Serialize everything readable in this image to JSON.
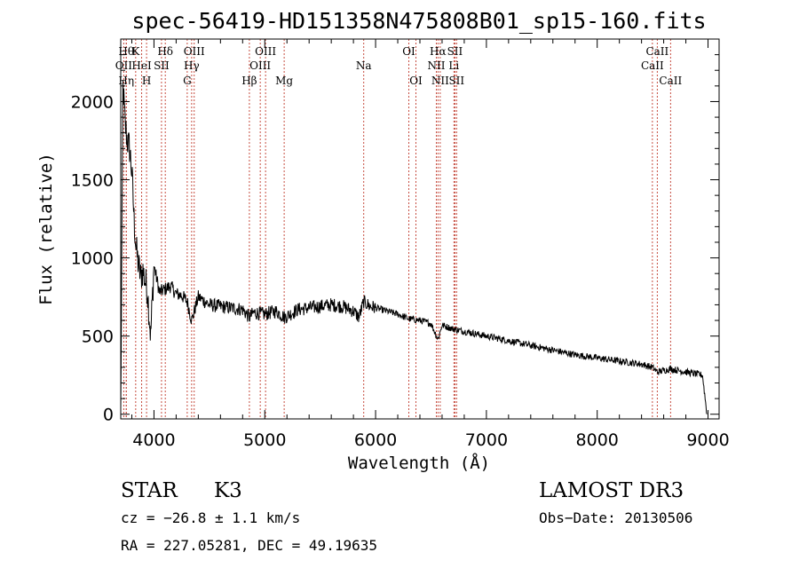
{
  "chart_data": {
    "type": "line",
    "title": "spec-56419-HD151358N475808B01_sp15-160.fits",
    "xlabel": "Wavelength (Å)",
    "ylabel": "Flux (relative)",
    "xlim": [
      3700,
      9100
    ],
    "ylim": [
      -30,
      2400
    ],
    "xticks": [
      4000,
      5000,
      6000,
      7000,
      8000,
      9000
    ],
    "yticks": [
      0,
      500,
      1000,
      1500,
      2000
    ],
    "xtick_labels": [
      "4000",
      "5000",
      "6000",
      "7000",
      "8000",
      "9000"
    ],
    "ytick_labels": [
      "0",
      "500",
      "1000",
      "1500",
      "2000"
    ],
    "series": [
      {
        "name": "spectrum",
        "x": [
          3700,
          3720,
          3740,
          3760,
          3780,
          3800,
          3820,
          3840,
          3860,
          3880,
          3900,
          3920,
          3940,
          3960,
          3970,
          3980,
          4000,
          4050,
          4100,
          4150,
          4200,
          4250,
          4300,
          4340,
          4400,
          4500,
          4600,
          4700,
          4800,
          4861,
          4900,
          5000,
          5100,
          5180,
          5300,
          5400,
          5500,
          5600,
          5700,
          5800,
          5850,
          5893,
          5950,
          6000,
          6100,
          6200,
          6300,
          6400,
          6500,
          6563,
          6600,
          6700,
          6800,
          7000,
          7200,
          7400,
          7600,
          7800,
          8000,
          8200,
          8400,
          8498,
          8542,
          8662,
          8800,
          8950,
          8990
        ],
        "y": [
          0,
          2100,
          1850,
          1750,
          1700,
          1550,
          1250,
          1050,
          950,
          880,
          920,
          850,
          800,
          600,
          500,
          650,
          950,
          780,
          800,
          820,
          770,
          760,
          720,
          600,
          750,
          700,
          690,
          680,
          670,
          620,
          650,
          640,
          660,
          620,
          670,
          680,
          690,
          700,
          690,
          660,
          620,
          720,
          690,
          680,
          660,
          640,
          610,
          600,
          580,
          480,
          570,
          545,
          530,
          500,
          470,
          440,
          410,
          380,
          360,
          340,
          320,
          300,
          270,
          290,
          270,
          250,
          0
        ]
      }
    ],
    "lines_upper": [
      {
        "x": 3727,
        "label": "OII",
        "row": 2
      },
      {
        "x": 3750,
        "label": "Hθ",
        "row": 1
      },
      {
        "x": 3750,
        "label": "Hη",
        "row": 3
      },
      {
        "x": 3835,
        "label": "K",
        "row": 1
      },
      {
        "x": 3889,
        "label": "HeI",
        "row": 2
      },
      {
        "x": 3933,
        "label": "H",
        "row": 3
      },
      {
        "x": 4068,
        "label": "SII",
        "row": 2
      },
      {
        "x": 4102,
        "label": "Hδ",
        "row": 1
      },
      {
        "x": 4300,
        "label": "G",
        "row": 3
      },
      {
        "x": 4340,
        "label": "Hγ",
        "row": 2
      },
      {
        "x": 4363,
        "label": "OIII",
        "row": 1
      },
      {
        "x": 4861,
        "label": "Hβ",
        "row": 3
      },
      {
        "x": 4959,
        "label": "OIII",
        "row": 2
      },
      {
        "x": 5007,
        "label": "OIII",
        "row": 1
      },
      {
        "x": 5175,
        "label": "Mg",
        "row": 3
      },
      {
        "x": 5893,
        "label": "Na",
        "row": 2
      },
      {
        "x": 6300,
        "label": "OI",
        "row": 1
      },
      {
        "x": 6364,
        "label": "OI",
        "row": 3
      },
      {
        "x": 6548,
        "label": "NII",
        "row": 2
      },
      {
        "x": 6563,
        "label": "Hα",
        "row": 1
      },
      {
        "x": 6583,
        "label": "NII",
        "row": 3
      },
      {
        "x": 6707,
        "label": "Li",
        "row": 2
      },
      {
        "x": 6716,
        "label": "SII",
        "row": 1
      },
      {
        "x": 6731,
        "label": "SII",
        "row": 3
      },
      {
        "x": 8498,
        "label": "CaII",
        "row": 2
      },
      {
        "x": 8542,
        "label": "CaII",
        "row": 1
      },
      {
        "x": 8662,
        "label": "CaII",
        "row": 3
      }
    ]
  },
  "info": {
    "object_class": "STAR",
    "subclass": "K3",
    "survey": "LAMOST DR3",
    "redshift": "cz = −26.8 ± 1.1 km/s",
    "obs_date": "Obs−Date: 20130506",
    "coords": "RA = 227.05281, DEC =  49.19635"
  }
}
